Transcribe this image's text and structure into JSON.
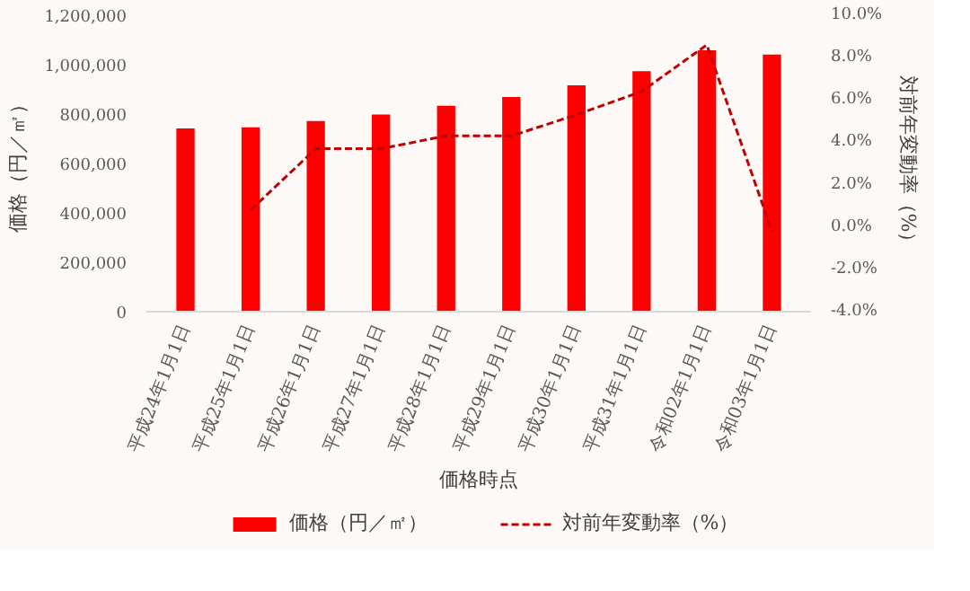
{
  "chart_data": {
    "type": "bar",
    "xlabel": "価格時点",
    "ylabel": "価格（円／㎡）",
    "y2label": "対前年変動率（%）",
    "categories": [
      "平成24年1月1日",
      "平成25年1月1日",
      "平成26年1月1日",
      "平成27年1月1日",
      "平成28年1月1日",
      "平成29年1月1日",
      "平成30年1月1日",
      "平成31年1月1日",
      "令和02年1月1日",
      "令和03年1月1日"
    ],
    "series": [
      {
        "name": "価格（円／㎡）",
        "color": "#ff0000",
        "values": [
          742000,
          746000,
          772000,
          798000,
          834000,
          869000,
          916000,
          974000,
          1058000,
          1041000
        ]
      },
      {
        "name": "対前年変動率（%）",
        "type": "line",
        "axis": "y2",
        "color": "#c00000",
        "line_style": "dashed",
        "values": [
          null,
          0.8,
          3.7,
          3.7,
          4.3,
          4.3,
          5.3,
          6.4,
          8.6,
          -0.2
        ]
      }
    ],
    "ylim": [
      0,
      1200000
    ],
    "yticks": [
      0,
      {
        "value": 200000,
        "label": "200,000"
      },
      {
        "value": 400000,
        "label": "400,000"
      },
      {
        "value": 600000,
        "label": "600,000"
      },
      {
        "value": 800000,
        "label": "800,000"
      },
      {
        "value": 1000000,
        "label": "1,000,000"
      },
      {
        "value": 1200000,
        "label": "1,200,000"
      }
    ],
    "y2lim": [
      -4,
      10
    ],
    "y2ticks": [
      {
        "value": -4,
        "label": "-4.0%"
      },
      {
        "value": -2,
        "label": "-2.0%"
      },
      {
        "value": 0,
        "label": "0.0%"
      },
      {
        "value": 2,
        "label": "2.0%"
      },
      {
        "value": 4,
        "label": "4.0%"
      },
      {
        "value": 6,
        "label": "6.0%"
      },
      {
        "value": 8,
        "label": "8.0%"
      },
      {
        "value": 10,
        "label": "10.0%"
      }
    ],
    "grid": false,
    "legend": "bottom"
  }
}
